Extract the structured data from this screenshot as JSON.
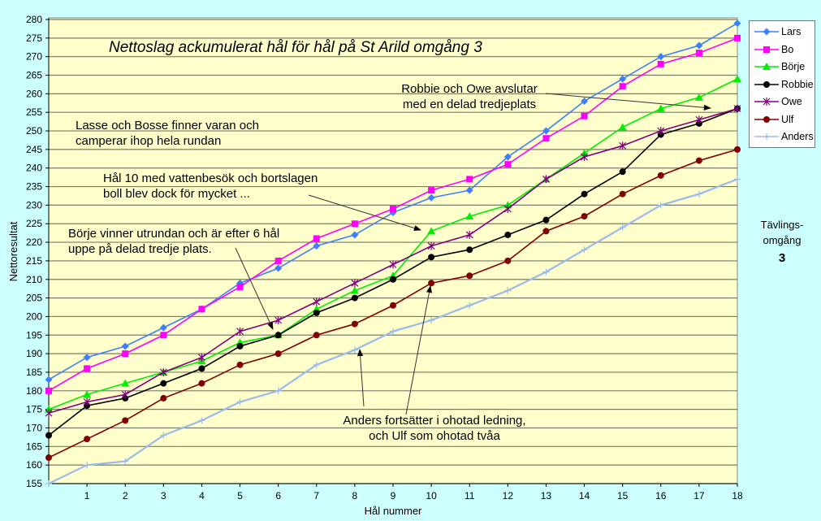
{
  "chart_data": {
    "type": "line",
    "title": "Nettoslag ackumulerat hål för hål på St Arild omgång 3",
    "xlabel": "Hål nummer",
    "ylabel": "Nettoresultat",
    "xlim": [
      0,
      18
    ],
    "ylim": [
      155,
      280
    ],
    "ytick_step": 5,
    "x": [
      0,
      1,
      2,
      3,
      4,
      5,
      6,
      7,
      8,
      9,
      10,
      11,
      12,
      13,
      14,
      15,
      16,
      17,
      18
    ],
    "xtick_labels": [
      "1",
      "2",
      "3",
      "4",
      "5",
      "6",
      "7",
      "8",
      "9",
      "10",
      "11",
      "12",
      "13",
      "14",
      "15",
      "16",
      "17",
      "18"
    ],
    "grid": true,
    "legend_position": "right",
    "series": [
      {
        "name": "Lars",
        "color": "#3d7fff",
        "marker": "diamond",
        "values": [
          183,
          189,
          192,
          197,
          202,
          209,
          213,
          219,
          222,
          228,
          232,
          234,
          243,
          250,
          258,
          264,
          270,
          273,
          279
        ]
      },
      {
        "name": "Bo",
        "color": "#ff00ff",
        "marker": "square",
        "values": [
          180,
          186,
          190,
          195,
          202,
          208,
          215,
          221,
          225,
          229,
          234,
          237,
          241,
          248,
          254,
          262,
          268,
          271,
          275
        ]
      },
      {
        "name": "Börje",
        "color": "#00ee00",
        "marker": "triangle",
        "values": [
          175,
          179,
          182,
          185,
          188,
          193,
          195,
          202,
          207,
          211,
          223,
          227,
          230,
          237,
          244,
          251,
          256,
          259,
          264
        ]
      },
      {
        "name": "Robbie",
        "color": "#000000",
        "marker": "circle",
        "values": [
          168,
          176,
          178,
          182,
          186,
          192,
          195,
          201,
          205,
          210,
          216,
          218,
          222,
          226,
          233,
          239,
          249,
          252,
          256
        ]
      },
      {
        "name": "Owe",
        "color": "#800080",
        "marker": "star",
        "values": [
          174,
          177,
          179,
          185,
          189,
          196,
          199,
          204,
          209,
          214,
          219,
          222,
          229,
          237,
          243,
          246,
          250,
          253,
          256
        ]
      },
      {
        "name": "Ulf",
        "color": "#800000",
        "marker": "circle",
        "values": [
          162,
          167,
          172,
          178,
          182,
          187,
          190,
          195,
          198,
          203,
          209,
          211,
          215,
          223,
          227,
          233,
          238,
          242,
          245
        ]
      },
      {
        "name": "Anders",
        "color": "#99bbee",
        "marker": "plus",
        "values": [
          155,
          160,
          161,
          168,
          172,
          177,
          180,
          187,
          191,
          196,
          199,
          203,
          207,
          212,
          218,
          224,
          230,
          233,
          237
        ]
      }
    ],
    "annotations": [
      "Robbie och Owe avslutar",
      "med en delad tredjeplats",
      "Lasse och Bosse finner varan och",
      "camperar ihop hela rundan",
      "Hål 10 med vattenbesök och bortslagen",
      "boll blev dock för mycket ...",
      "Börje vinner utrundan och är efter 6 hål",
      "uppe på delad tredje plats.",
      "Anders fortsätter i ohotad ledning,",
      "och Ulf som ohotad tvåa"
    ],
    "side_label": [
      "Tävlings-",
      "omgång",
      "3"
    ]
  }
}
